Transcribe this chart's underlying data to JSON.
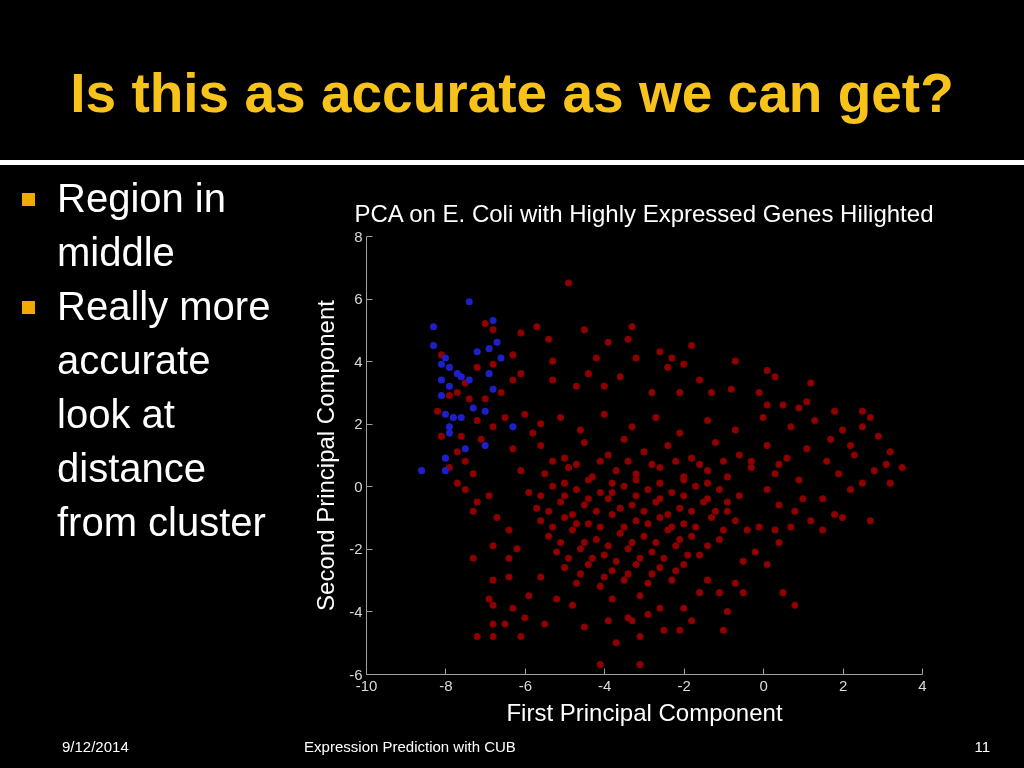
{
  "chart_data": {
    "type": "scatter",
    "title": "Is this as accurate as we can get?",
    "subtitle": "PCA on E. Coli with Highly Expressed Genes Hilighted",
    "xlabel": "First Principal Component",
    "ylabel": "Second Principal Component",
    "annotations": [
      "Region in middle",
      "Really more accurate look at distance from cluster",
      "9/12/2014",
      "Expression Prediction with CUB",
      "11"
    ],
    "xlim": [
      -10,
      4
    ],
    "ylim": [
      -6,
      8
    ],
    "xticks": [
      -10,
      -8,
      -6,
      -4,
      -2,
      0,
      2,
      4
    ],
    "yticks": [
      -6,
      -4,
      -2,
      0,
      2,
      4,
      6,
      8
    ],
    "marker": "circle",
    "series": [
      {
        "color": "#8c0000",
        "x": [
          -4.9,
          -4.5,
          -3.3,
          -5.4,
          -3.9,
          -3.4,
          -1.8,
          -2.6,
          -2.3,
          -4.2,
          -5.3,
          -0.7,
          -2.0,
          -3.2,
          -2.4,
          0.1,
          0.3,
          1.2,
          -1.6,
          -3.6,
          -4.4,
          -0.8,
          -1.3,
          -0.1,
          -2.1,
          -2.8,
          -4.0,
          -4.7,
          1.1,
          0.5,
          0.1,
          0.9,
          1.8,
          2.5,
          2.7,
          2.9,
          3.2,
          3.5,
          3.2,
          3.1,
          2.5,
          2.0,
          2.2,
          2.7,
          0.8,
          0.5,
          -0.5,
          -0.9,
          -1.0,
          -1.6,
          -1.1,
          -0.7,
          -1.4,
          -2.1,
          -2.0,
          -1.8,
          -3.1,
          -3.1,
          -2.5,
          -2.9,
          0.1,
          -0.5,
          -0.2,
          0.4,
          1.5,
          1.2,
          2.0,
          1.8,
          2.2,
          2.5,
          0.3,
          -0.4,
          -0.1,
          0.7,
          1.5,
          1.0,
          0.8,
          0.4,
          -3.4,
          -2.6,
          -7.3,
          -7.2,
          -6.8,
          -6.8,
          -6.5,
          -6.1,
          -6.9,
          -6.8,
          -6.8,
          -6.8,
          -7.3,
          -7.2,
          -7.7,
          -7.5,
          -4.1,
          -3.7,
          -5.5,
          -6.0,
          -5.9,
          -6.3,
          -6.4,
          -6.4,
          -6.2,
          -6.4,
          -6.7,
          -6.9,
          -4.8,
          -4.5,
          -3.9,
          -3.3,
          -5.6,
          -5.2,
          -7.0,
          -6.8,
          -6.1,
          -5.7,
          -8.1,
          -6.3,
          -6.8,
          -7.2,
          -6.1,
          -6.3,
          -7.5,
          -7.7,
          -7.9,
          -8.2,
          -8.1,
          -7.4,
          -7.0,
          -6.6,
          -7.6,
          -7.7,
          -7.5,
          -7.9,
          -7.2,
          -6.8,
          -6.5,
          -7.1,
          -6.0,
          -5.6,
          -5.3,
          -7.3,
          -5.8,
          -5.1,
          -4.6,
          -4.0,
          -3.3,
          -2.7,
          -2.1,
          -1.4,
          -0.7,
          0.0,
          0.7,
          1.3,
          1.7,
          -6.3,
          -5.6,
          -5.0,
          -4.5,
          -3.9,
          -3.5,
          -3.0,
          -2.4,
          -1.8,
          -1.2,
          -0.6,
          0.1,
          0.6,
          1.1,
          1.6,
          2.3,
          2.8,
          -6.1,
          -5.5,
          -4.9,
          -4.3,
          -3.7,
          -3.2,
          -2.6,
          -2.0,
          -1.4,
          -0.9,
          -0.3,
          0.3,
          0.9,
          1.9,
          -5.9,
          -5.3,
          -4.7,
          -4.1,
          -3.5,
          -2.9,
          -2.3,
          -1.7,
          -1.1,
          -0.6,
          0.1,
          -5.7,
          -5.1,
          -4.5,
          -3.9,
          -3.3,
          -2.7,
          -2.1,
          -1.5,
          -0.9,
          -5.6,
          -5.0,
          -4.4,
          -3.8,
          -3.2,
          -2.6,
          -2.0,
          -1.3,
          -0.7,
          -5.4,
          -4.8,
          -4.2,
          -3.6,
          -3.0,
          -2.4,
          -1.8,
          -1.1,
          -5.2,
          -4.6,
          -4.0,
          -3.4,
          -2.8,
          -2.2,
          -1.6,
          -5.0,
          -4.4,
          -3.8,
          -3.2,
          -2.6,
          -2.0,
          -4.7,
          -4.1,
          -3.5,
          -2.9,
          -2.3,
          -3.8,
          -3.1,
          -5.3,
          -4.7,
          -4.1,
          -3.4,
          -2.8,
          -2.2,
          -1.6,
          -1.0,
          -0.3,
          0.4,
          -5.0,
          -4.4,
          -3.8,
          -3.2,
          -2.6,
          -2.0,
          -1.4,
          -5.6,
          -5.0,
          -4.4,
          -3.8,
          -3.2,
          -2.6,
          -2.0,
          -1.4,
          -0.9,
          -5.4,
          -4.8,
          -4.2,
          -3.6,
          -3.0,
          -2.4,
          -1.8,
          -1.2,
          -5.3,
          -4.7,
          -4.1,
          -3.5,
          -2.9,
          -2.3,
          -1.7,
          -1.0,
          -5.1,
          -4.5,
          -3.9,
          -3.3,
          -2.7,
          -2.1,
          -1.4,
          -4.9,
          -4.3,
          -3.7,
          -3.1,
          -2.5,
          -1.9,
          -4.6,
          -4.0,
          -3.4,
          -2.8,
          -2.2
        ],
        "values": [
          6.5,
          5.0,
          5.1,
          4.7,
          4.6,
          4.7,
          4.5,
          4.3,
          4.1,
          4.1,
          4.0,
          4.0,
          3.9,
          4.1,
          3.8,
          3.7,
          3.5,
          3.3,
          3.4,
          3.5,
          3.6,
          3.1,
          3.0,
          3.0,
          3.0,
          3.0,
          3.2,
          3.2,
          2.7,
          2.6,
          2.6,
          2.5,
          2.4,
          2.4,
          2.2,
          1.6,
          1.1,
          0.6,
          0.1,
          0.7,
          1.9,
          1.8,
          1.3,
          -1.1,
          -3.8,
          -3.4,
          -3.4,
          -4.0,
          -4.6,
          -3.4,
          -3.4,
          -3.1,
          -3.0,
          -4.6,
          -3.9,
          -4.3,
          -5.7,
          -4.8,
          -4.6,
          -4.1,
          -2.5,
          -2.4,
          -2.1,
          -1.8,
          -1.4,
          -1.1,
          -1.0,
          -0.9,
          -0.1,
          0.1,
          -1.4,
          -1.4,
          -1.3,
          -1.3,
          -0.4,
          -0.4,
          -0.8,
          -0.6,
          -4.2,
          -3.9,
          -2.3,
          -4.8,
          -4.8,
          -4.4,
          -4.4,
          -4.8,
          -3.6,
          -3.8,
          -3.0,
          -1.9,
          -0.8,
          -0.5,
          0.1,
          -0.1,
          -5.7,
          -5.0,
          -4.4,
          -4.2,
          -3.5,
          -3.9,
          -2.9,
          -2.3,
          -2.0,
          -1.4,
          -1.0,
          -0.3,
          -3.8,
          -4.5,
          -4.3,
          -4.3,
          -2.9,
          -3.6,
          5.2,
          5.0,
          4.9,
          5.1,
          4.2,
          4.2,
          3.9,
          3.8,
          3.6,
          3.4,
          3.3,
          3.0,
          2.9,
          2.4,
          1.6,
          2.8,
          2.8,
          3.0,
          1.6,
          1.1,
          0.8,
          0.6,
          2.1,
          1.9,
          2.2,
          1.5,
          2.3,
          2.0,
          3.4,
          0.4,
          1.7,
          2.2,
          1.8,
          2.3,
          1.9,
          2.2,
          1.7,
          2.1,
          1.8,
          2.2,
          1.9,
          2.1,
          1.5,
          1.2,
          1.3,
          0.9,
          1.4,
          1.0,
          1.5,
          1.1,
          1.3,
          0.9,
          1.4,
          1.0,
          1.3,
          0.9,
          1.2,
          0.8,
          1.0,
          0.5,
          0.5,
          0.4,
          0.6,
          0.3,
          0.5,
          0.4,
          0.6,
          0.3,
          0.5,
          0.3,
          0.6,
          0.4,
          0.2,
          0.4,
          -0.2,
          0.0,
          -0.1,
          -0.2,
          0.0,
          -0.1,
          -0.2,
          0.0,
          -0.1,
          -0.3,
          -0.1,
          -0.7,
          -0.5,
          -0.6,
          -0.4,
          -0.6,
          -0.5,
          -0.7,
          -0.5,
          -0.8,
          -1.1,
          -1.0,
          -1.2,
          -0.9,
          -1.1,
          -1.0,
          -1.2,
          -1.0,
          -1.1,
          -1.6,
          -1.4,
          -1.7,
          -1.5,
          -1.6,
          -1.4,
          -1.6,
          -1.7,
          -2.1,
          -2.0,
          -2.2,
          -2.0,
          -2.1,
          -1.9,
          -2.2,
          -2.6,
          -2.5,
          -2.7,
          -2.5,
          -2.6,
          -2.5,
          -3.1,
          -3.2,
          -3.0,
          -3.1,
          -3.0,
          -3.6,
          -3.5,
          0.8,
          0.7,
          0.8,
          0.8,
          0.7,
          0.8,
          0.7,
          0.8,
          0.8,
          0.7,
          0.1,
          0.2,
          0.1,
          0.2,
          0.1,
          0.2,
          0.1,
          -0.3,
          -0.3,
          -0.4,
          -0.2,
          -0.3,
          -0.4,
          -0.3,
          -0.4,
          -0.5,
          -0.8,
          -0.9,
          -0.8,
          -0.7,
          -0.8,
          -0.9,
          -0.8,
          -0.8,
          -1.3,
          -1.2,
          -1.3,
          -1.3,
          -1.2,
          -1.3,
          -1.3,
          -1.4,
          -1.8,
          -1.8,
          -1.9,
          -1.8,
          -1.8,
          -1.7,
          -1.9,
          -2.3,
          -2.3,
          -2.4,
          -2.3,
          -2.3,
          -2.2,
          -2.8,
          -2.9,
          -2.8,
          -2.8,
          -2.7
        ]
      },
      {
        "color": "#1f1fc8",
        "x": [
          -7.4,
          -8.3,
          -8.3,
          -6.8,
          -6.7,
          -6.9,
          -7.2,
          -6.6,
          -8.0,
          -8.1,
          -7.9,
          -7.7,
          -7.6,
          -6.9,
          -8.1,
          -7.4,
          -7.9,
          -6.8,
          -8.1,
          -7.3,
          -7.0,
          -8.0,
          -7.8,
          -7.6,
          -7.9,
          -7.9,
          -6.3,
          -7.5,
          -7.0,
          -8.0,
          -8.6,
          -8.0
        ],
        "values": [
          5.9,
          5.1,
          4.5,
          5.3,
          4.6,
          4.4,
          4.3,
          4.1,
          4.1,
          3.9,
          3.8,
          3.6,
          3.5,
          3.6,
          3.4,
          3.4,
          3.2,
          3.1,
          2.9,
          2.5,
          2.4,
          2.3,
          2.2,
          2.2,
          1.9,
          1.7,
          1.9,
          1.2,
          1.3,
          0.9,
          0.5,
          0.5
        ]
      }
    ]
  }
}
